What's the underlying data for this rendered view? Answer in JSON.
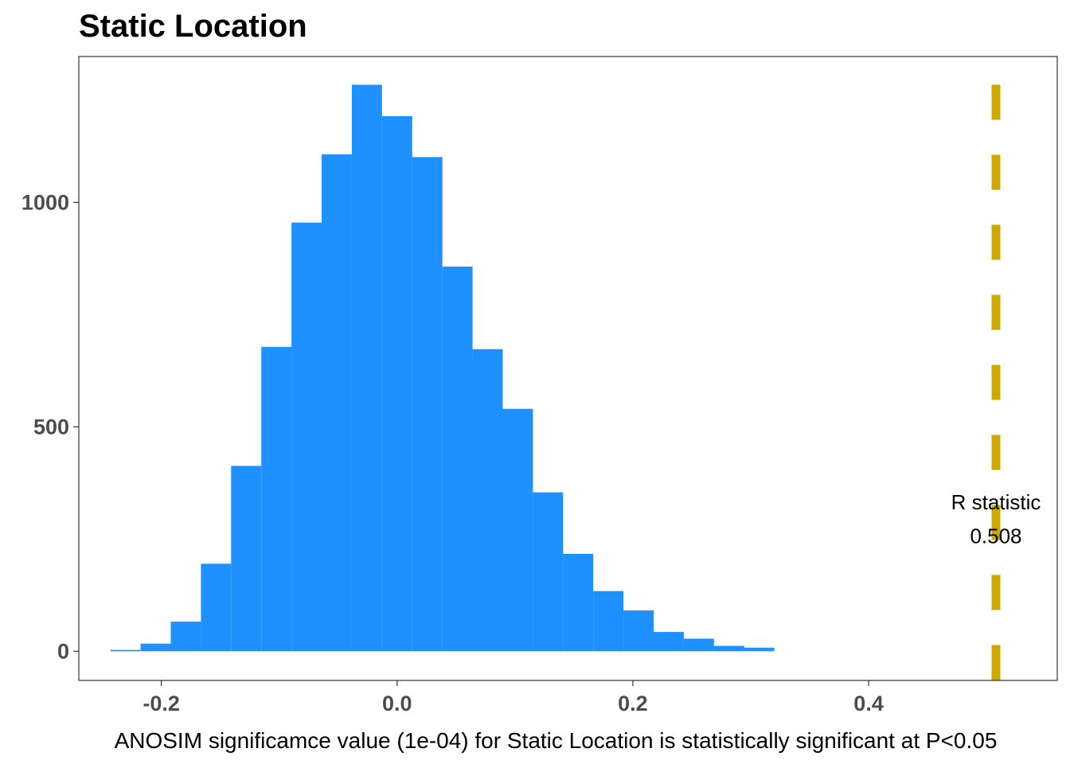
{
  "chart_data": {
    "type": "bar",
    "title": "Static Location",
    "xlabel": "ANOSIM significamce value (1e-04) for Static Location is statistically significant at P<0.05",
    "ylabel": "",
    "bin_width": 0.0256,
    "bins": [
      {
        "x0": -0.2432,
        "x1": -0.2176,
        "count": 3
      },
      {
        "x0": -0.2176,
        "x1": -0.192,
        "count": 17
      },
      {
        "x0": -0.192,
        "x1": -0.1664,
        "count": 66
      },
      {
        "x0": -0.1664,
        "x1": -0.1408,
        "count": 195
      },
      {
        "x0": -0.1408,
        "x1": -0.1152,
        "count": 413
      },
      {
        "x0": -0.1152,
        "x1": -0.0896,
        "count": 678
      },
      {
        "x0": -0.0896,
        "x1": -0.064,
        "count": 955
      },
      {
        "x0": -0.064,
        "x1": -0.0384,
        "count": 1107
      },
      {
        "x0": -0.0384,
        "x1": -0.0128,
        "count": 1262
      },
      {
        "x0": -0.0128,
        "x1": 0.0128,
        "count": 1192
      },
      {
        "x0": 0.0128,
        "x1": 0.0384,
        "count": 1101
      },
      {
        "x0": 0.0384,
        "x1": 0.064,
        "count": 857
      },
      {
        "x0": 0.064,
        "x1": 0.0896,
        "count": 673
      },
      {
        "x0": 0.0896,
        "x1": 0.1152,
        "count": 540
      },
      {
        "x0": 0.1152,
        "x1": 0.1408,
        "count": 354
      },
      {
        "x0": 0.1408,
        "x1": 0.1664,
        "count": 217
      },
      {
        "x0": 0.1664,
        "x1": 0.192,
        "count": 134
      },
      {
        "x0": 0.192,
        "x1": 0.2176,
        "count": 91
      },
      {
        "x0": 0.2176,
        "x1": 0.2432,
        "count": 43
      },
      {
        "x0": 0.2432,
        "x1": 0.2688,
        "count": 28
      },
      {
        "x0": 0.2688,
        "x1": 0.2944,
        "count": 12
      },
      {
        "x0": 0.2944,
        "x1": 0.32,
        "count": 8
      }
    ],
    "x_ticks": [
      -0.2,
      0.0,
      0.2,
      0.4
    ],
    "x_tick_labels": [
      "-0.2",
      "0.0",
      "0.2",
      "0.4"
    ],
    "y_ticks": [
      0,
      500,
      1000
    ],
    "y_tick_labels": [
      "0",
      "500",
      "1000"
    ],
    "xlim": [
      -0.27,
      0.56
    ],
    "ylim": [
      -65,
      1325
    ],
    "grid": false,
    "bar_color": "#1E90FF",
    "reference_line": {
      "x": 0.508,
      "color": "#CCA800",
      "style": "dashed",
      "ymin": -65,
      "ymax": 1262
    },
    "annotation": {
      "line1": "R statistic",
      "line2": "0.508",
      "x": 0.508,
      "y1": 332,
      "y2": 257
    }
  }
}
